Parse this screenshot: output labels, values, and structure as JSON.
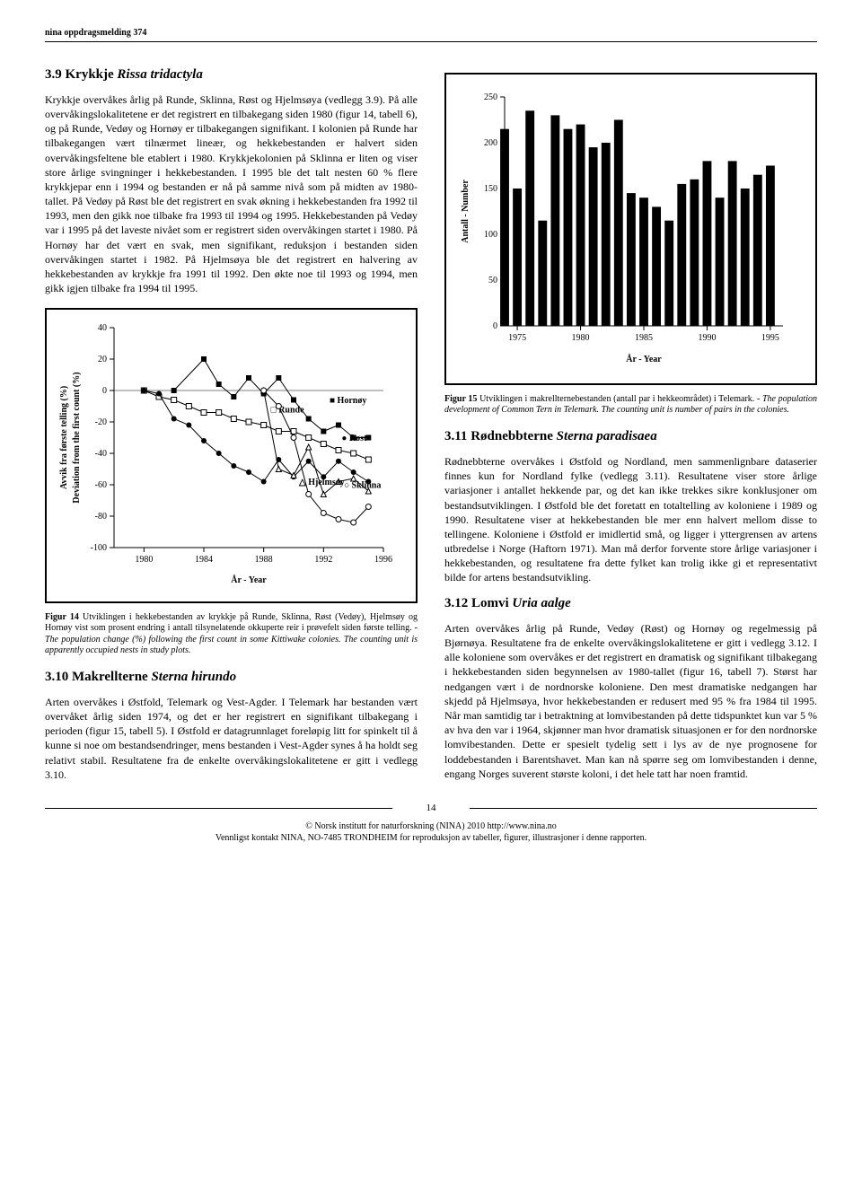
{
  "header": "nina oppdragsmelding 374",
  "page_number": "14",
  "footer_line1": "© Norsk institutt for naturforskning (NINA) 2010 http://www.nina.no",
  "footer_line2": "Vennligst kontakt NINA, NO-7485 TRONDHEIM for reproduksjon av tabeller, figurer, illustrasjoner i denne rapporten.",
  "sec39": {
    "num": "3.9",
    "title": "Krykkje",
    "latin": "Rissa tridactyla",
    "body": "Krykkje overvåkes årlig på Runde, Sklinna, Røst og Hjelmsøya (vedlegg 3.9). På alle overvåkingslokalitetene er det registrert en tilbakegang siden 1980 (figur 14, tabell 6), og på Runde, Vedøy og Hornøy er tilbakegangen signifikant. I kolonien på Runde har tilbakegangen vært tilnærmet lineær, og hekkebestanden er halvert siden overvåkingsfeltene ble etablert i 1980. Krykkjekolonien på Sklinna er liten og viser store årlige svingninger i hekkebestanden. I 1995 ble det talt nesten 60 % flere krykkjepar enn i 1994 og bestanden er nå på samme nivå som på midten av 1980-tallet. På Vedøy på Røst ble det registrert en svak økning i hekkebestanden fra 1992 til 1993, men den gikk noe tilbake fra 1993 til 1994 og 1995. Hekkebestanden på Vedøy var i 1995 på det laveste nivået som er registrert siden overvåkingen startet i 1980. På Hornøy har det vært en svak, men signifikant, reduksjon i bestanden siden overvåkingen startet i 1982. På Hjelmsøya ble det registrert en halvering av hekkebestanden av krykkje fra 1991 til 1992. Den økte noe til 1993 og 1994, men gikk igjen tilbake fra 1994 til 1995."
  },
  "fig14": {
    "caption_bold": "Figur 14",
    "caption_plain": " Utviklingen i hekkebestanden av krykkje på Runde, Sklinna, Røst (Vedøy), Hjelmsøy og Hornøy vist som prosent endring i antall tilsynelatende okkuperte reir i prøvefelt siden første telling. - ",
    "caption_italic": "The population change (%) following the first count in some Kittiwake colonies. The counting unit is apparently occupied nests in study plots.",
    "xlabel": "År - Year",
    "ylabel_l1": "Avvik fra første telling (%)",
    "ylabel_l2": "Deviation from the first count (%)",
    "ylim": [
      -100,
      40
    ],
    "ytick_step": 20,
    "xlim": [
      1978,
      1996
    ],
    "xticks": [
      1980,
      1984,
      1988,
      1992,
      1996
    ],
    "series": {
      "Runde": {
        "marker": "square-open",
        "sym": "□",
        "years": [
          1980,
          1981,
          1982,
          1983,
          1984,
          1985,
          1986,
          1987,
          1988,
          1989,
          1990,
          1991,
          1992,
          1993,
          1994,
          1995
        ],
        "vals": [
          0,
          -4,
          -6,
          -10,
          -14,
          -14,
          -18,
          -20,
          -22,
          -26,
          -26,
          -30,
          -34,
          -38,
          -40,
          -44
        ]
      },
      "Hornøy": {
        "marker": "square-filled",
        "sym": "■",
        "years": [
          1982,
          1984,
          1985,
          1986,
          1987,
          1988,
          1989,
          1990,
          1991,
          1992,
          1993,
          1994,
          1995
        ],
        "vals": [
          0,
          20,
          4,
          -4,
          8,
          -2,
          8,
          -6,
          -18,
          -26,
          -22,
          -30,
          -30
        ]
      },
      "Røst": {
        "marker": "circle-filled",
        "sym": "●",
        "years": [
          1980,
          1981,
          1982,
          1983,
          1984,
          1985,
          1986,
          1987,
          1988,
          1989,
          1990,
          1991,
          1992,
          1993,
          1994,
          1995
        ],
        "vals": [
          0,
          -2,
          -18,
          -22,
          -32,
          -40,
          -48,
          -52,
          -58,
          -44,
          -55,
          -45,
          -55,
          -45,
          -52,
          -58
        ]
      },
      "Hjelmsøy": {
        "marker": "triangle-open",
        "sym": "△",
        "years": [
          1988,
          1989,
          1990,
          1991,
          1992,
          1993,
          1994,
          1995
        ],
        "vals": [
          0,
          -50,
          -54,
          -36,
          -66,
          -58,
          -56,
          -64
        ]
      },
      "Sklinna": {
        "marker": "circle-open",
        "sym": "○",
        "years": [
          1988,
          1989,
          1990,
          1991,
          1992,
          1993,
          1994,
          1995
        ],
        "vals": [
          0,
          -10,
          -30,
          -66,
          -78,
          -82,
          -84,
          -74
        ]
      }
    },
    "style": {
      "line_color": "#000000",
      "line_width": 1,
      "marker_size": 5,
      "background": "#ffffff",
      "axis_color": "#000000",
      "tick_fontsize": 10,
      "label_fontsize": 10
    }
  },
  "sec310": {
    "num": "3.10",
    "title": "Makrellterne",
    "latin": "Sterna hirundo",
    "body": "Arten overvåkes i Østfold, Telemark og Vest-Agder. I Telemark har bestanden vært overvåket årlig siden 1974, og det er her registrert en signifikant tilbakegang i perioden (figur 15, tabell 5). I Østfold er datagrunnlaget foreløpig litt for spinkelt til å kunne si noe om bestandsendringer, mens bestanden i Vest-Agder synes å ha holdt seg relativt stabil. Resultatene fra de enkelte overvåkingslokalitetene er gitt i vedlegg 3.10."
  },
  "fig15": {
    "caption_bold": "Figur 15",
    "caption_plain": " Utviklingen i makrellternebestanden (antall par i hekkeområdet) i Telemark. - ",
    "caption_italic": "The population development of Common Tern in Telemark. The counting unit is number of pairs in the colonies.",
    "xlabel": "År - Year",
    "ylabel": "Antall - Number",
    "ylim": [
      0,
      250
    ],
    "ytick_step": 50,
    "xlim": [
      1974,
      1996
    ],
    "xticks": [
      1975,
      1980,
      1985,
      1990,
      1995
    ],
    "values_years": [
      1974,
      1975,
      1976,
      1977,
      1978,
      1979,
      1980,
      1981,
      1982,
      1983,
      1984,
      1985,
      1986,
      1987,
      1988,
      1989,
      1990,
      1991,
      1992,
      1993,
      1994,
      1995
    ],
    "values": [
      215,
      150,
      235,
      115,
      230,
      215,
      220,
      195,
      200,
      225,
      145,
      140,
      130,
      115,
      155,
      160,
      180,
      140,
      180,
      150,
      165,
      175
    ],
    "style": {
      "bar_color": "#000000",
      "bar_width": 0.7,
      "background": "#ffffff",
      "axis_color": "#000000",
      "tick_fontsize": 10,
      "label_fontsize": 10
    }
  },
  "sec311": {
    "num": "3.11",
    "title": "Rødnebbterne",
    "latin": "Sterna paradisaea",
    "body": "Rødnebbterne overvåkes i Østfold og Nordland, men sammenlignbare dataserier finnes kun for Nordland fylke (vedlegg 3.11). Resultatene viser store årlige variasjoner i antallet hekkende par, og det kan ikke trekkes sikre konklusjoner om bestandsutviklingen. I Østfold ble det foretatt en totaltelling av koloniene i 1989 og 1990. Resultatene viser at hekkebestanden ble mer enn halvert mellom disse to tellingene. Koloniene i Østfold er imidlertid små, og ligger i yttergrensen av artens utbredelse i Norge (Haftorn 1971). Man må derfor forvente store årlige variasjoner i hekkebestanden, og resultatene fra dette fylket kan trolig ikke gi et representativt bilde for artens bestandsutvikling."
  },
  "sec312": {
    "num": "3.12",
    "title": "Lomvi",
    "latin": "Uria aalge",
    "body": "Arten overvåkes årlig på Runde, Vedøy (Røst) og Hornøy og regelmessig på Bjørnøya. Resultatene fra de enkelte overvåkingslokalitetene er gitt i vedlegg 3.12. I alle koloniene som overvåkes er det registrert en dramatisk og signifikant tilbakegang i hekkebestanden siden begynnelsen av 1980-tallet (figur 16, tabell 7). Størst har nedgangen vært i de nordnorske koloniene. Den mest dramatiske nedgangen har skjedd på Hjelmsøya, hvor hekkebestanden er redusert med 95 % fra 1984 til 1995. Når man samtidig tar i betraktning at lomvibestanden på dette tidspunktet kun var 5 % av hva den var i 1964, skjønner man hvor dramatisk situasjonen er for den nordnorske lomvibestanden. Dette er spesielt tydelig sett i lys av de nye prognosene for loddebestanden i Barentshavet. Man kan nå spørre seg om lomvibestanden i denne, engang Norges suverent største koloni, i det hele tatt har noen framtid."
  }
}
